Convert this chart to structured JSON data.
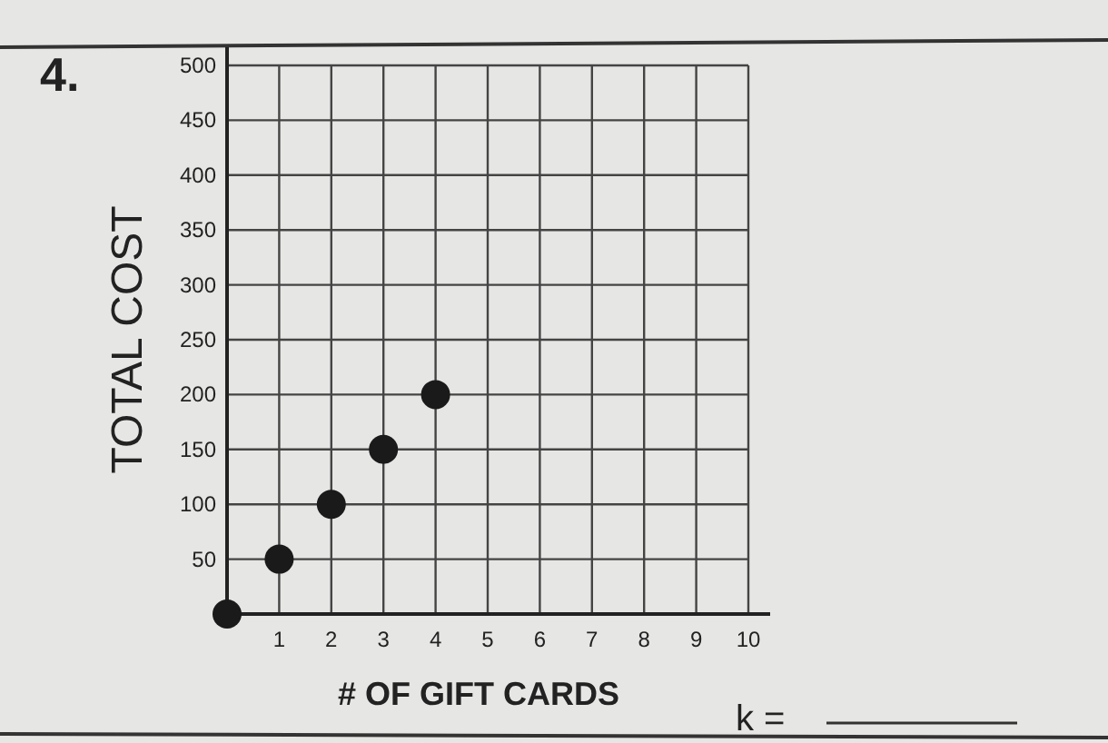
{
  "chart_data": {
    "type": "scatter",
    "xlabel": "# OF GIFT CARDS",
    "ylabel": "TOTAL COST",
    "x": [
      0,
      1,
      2,
      3,
      4
    ],
    "series": [
      {
        "color": "#1a1a1a",
        "values": [
          0,
          50,
          100,
          150,
          200
        ]
      }
    ],
    "xlim": [
      0,
      10
    ],
    "xticks": [
      1,
      2,
      3,
      4,
      5,
      6,
      7,
      8,
      9,
      10
    ],
    "ylim": [
      0,
      500
    ],
    "yticks": [
      50,
      100,
      150,
      200,
      250,
      300,
      350,
      400,
      450,
      500
    ],
    "grid": true,
    "marker": "circle",
    "annotations": [
      "4.",
      "k ="
    ]
  }
}
